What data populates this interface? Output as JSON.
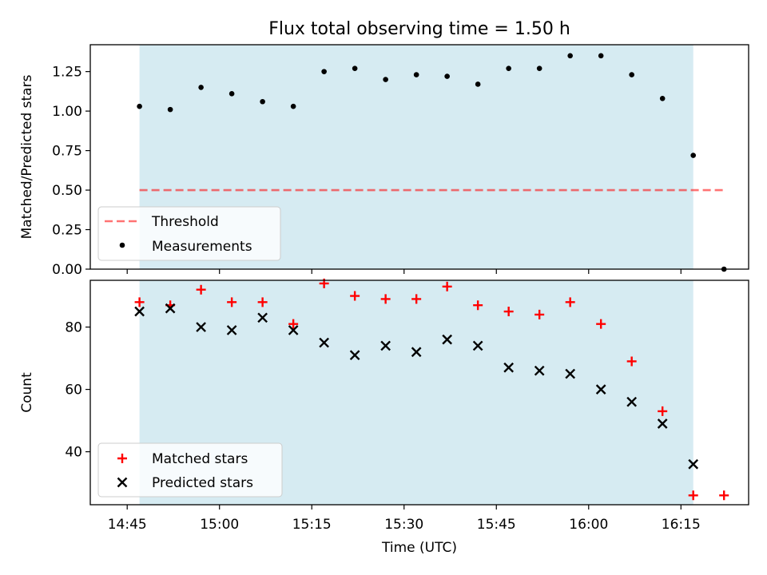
{
  "title": "Flux total observing time = 1.50 h",
  "colors": {
    "band": "#add8e6",
    "threshold": "#ff0000",
    "matched": "#ff0000",
    "predicted": "#000000",
    "measurement": "#000000"
  },
  "chart_data": [
    {
      "type": "scatter",
      "name": "ratio-panel",
      "ylabel": "Matched/Predicted stars",
      "ylim": [
        0,
        1.42
      ],
      "yticks": [
        0.0,
        0.25,
        0.5,
        0.75,
        1.0,
        1.25
      ],
      "ytick_labels": [
        "0.00",
        "0.25",
        "0.50",
        "0.75",
        "1.00",
        "1.25"
      ],
      "shaded_span": [
        "14:47",
        "16:17"
      ],
      "threshold": {
        "label": "Threshold",
        "value": 0.5,
        "x_start": "14:47",
        "x_end": "16:22",
        "style": "dashed"
      },
      "series": [
        {
          "name": "Measurements",
          "x": [
            "14:47",
            "14:52",
            "14:57",
            "15:02",
            "15:07",
            "15:12",
            "15:17",
            "15:22",
            "15:27",
            "15:32",
            "15:37",
            "15:42",
            "15:47",
            "15:52",
            "15:57",
            "16:02",
            "16:07",
            "16:12",
            "16:17",
            "16:22"
          ],
          "values": [
            1.03,
            1.01,
            1.15,
            1.11,
            1.06,
            1.03,
            1.25,
            1.27,
            1.2,
            1.23,
            1.22,
            1.17,
            1.27,
            1.27,
            1.35,
            1.35,
            1.23,
            1.08,
            0.72,
            0.0
          ]
        }
      ],
      "legend": {
        "position": "lower-left",
        "entries": [
          "Threshold",
          "Measurements"
        ]
      },
      "grid": false
    },
    {
      "type": "scatter",
      "name": "count-panel",
      "xlabel": "Time (UTC)",
      "ylabel": "Count",
      "xlim": [
        "14:39",
        "16:26"
      ],
      "ylim": [
        23,
        95
      ],
      "xticks": [
        "14:45",
        "15:00",
        "15:15",
        "15:30",
        "15:45",
        "16:00",
        "16:15"
      ],
      "yticks": [
        40,
        60,
        80
      ],
      "ytick_labels": [
        "40",
        "60",
        "80"
      ],
      "shaded_span": [
        "14:47",
        "16:17"
      ],
      "series": [
        {
          "name": "Matched stars",
          "marker": "+",
          "x": [
            "14:47",
            "14:52",
            "14:57",
            "15:02",
            "15:07",
            "15:12",
            "15:17",
            "15:22",
            "15:27",
            "15:32",
            "15:37",
            "15:42",
            "15:47",
            "15:52",
            "15:57",
            "16:02",
            "16:07",
            "16:12",
            "16:17",
            "16:22"
          ],
          "values": [
            88,
            87,
            92,
            88,
            88,
            81,
            94,
            90,
            89,
            89,
            93,
            87,
            85,
            84,
            88,
            81,
            69,
            53,
            26,
            26
          ]
        },
        {
          "name": "Predicted stars",
          "marker": "x",
          "x": [
            "14:47",
            "14:52",
            "14:57",
            "15:02",
            "15:07",
            "15:12",
            "15:17",
            "15:22",
            "15:27",
            "15:32",
            "15:37",
            "15:42",
            "15:47",
            "15:52",
            "15:57",
            "16:02",
            "16:07",
            "16:12",
            "16:17"
          ],
          "values": [
            85,
            86,
            80,
            79,
            83,
            79,
            75,
            71,
            74,
            72,
            76,
            74,
            67,
            66,
            65,
            60,
            56,
            49,
            36
          ]
        }
      ],
      "legend": {
        "position": "lower-left",
        "entries": [
          "Matched stars",
          "Predicted stars"
        ]
      },
      "grid": false
    }
  ]
}
